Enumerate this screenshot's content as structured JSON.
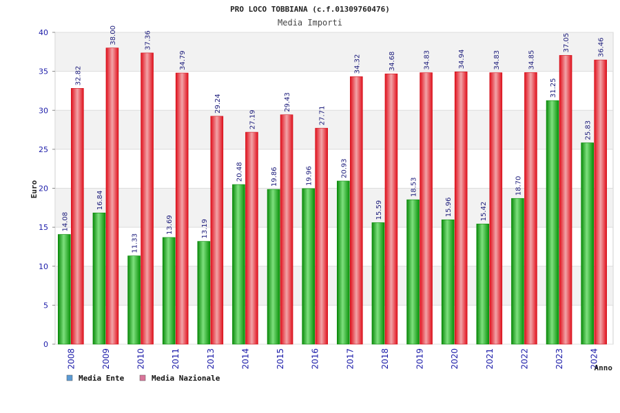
{
  "chart_data": {
    "type": "bar",
    "title": "PRO LOCO TOBBIANA (c.f.01309760476)",
    "subtitle": "Media Importi",
    "xlabel": "Anno",
    "ylabel": "Euro",
    "ylim": [
      0,
      40
    ],
    "yticks": [
      "0",
      "5",
      "10",
      "15",
      "20",
      "25",
      "30",
      "35",
      "40"
    ],
    "grid": true,
    "legend_position": "bottom-left",
    "categories": [
      "2008",
      "2009",
      "2010",
      "2011",
      "2013",
      "2014",
      "2015",
      "2016",
      "2017",
      "2018",
      "2019",
      "2020",
      "2021",
      "2022",
      "2023",
      "2024"
    ],
    "series": [
      {
        "name": "Media Ente",
        "color": "#0fb10f",
        "legend_color": "#5b9bd5",
        "values": [
          14.08,
          16.84,
          11.33,
          13.69,
          13.19,
          20.48,
          19.86,
          19.96,
          20.93,
          15.59,
          18.53,
          15.96,
          15.42,
          18.7,
          31.25,
          25.83
        ],
        "labels": [
          "14.08",
          "16.84",
          "11.33",
          "13.69",
          "13.19",
          "20.48",
          "19.86",
          "19.96",
          "20.93",
          "15.59",
          "18.53",
          "15.96",
          "15.42",
          "18.70",
          "31.25",
          "25.83"
        ]
      },
      {
        "name": "Media Nazionale",
        "color": "#e8212b",
        "legend_color": "#d9759a",
        "values": [
          32.82,
          38.0,
          37.36,
          34.79,
          29.24,
          27.19,
          29.43,
          27.71,
          34.32,
          34.68,
          34.83,
          34.94,
          34.83,
          34.85,
          37.05,
          36.46
        ],
        "labels": [
          "32.82",
          "38.00",
          "37.36",
          "34.79",
          "29.24",
          "27.19",
          "29.43",
          "27.71",
          "34.32",
          "34.68",
          "34.83",
          "34.94",
          "34.83",
          "34.85",
          "37.05",
          "36.46"
        ]
      }
    ]
  }
}
